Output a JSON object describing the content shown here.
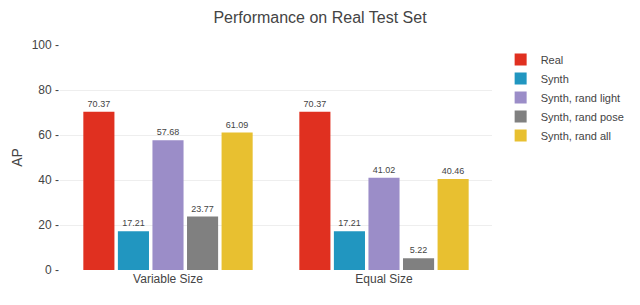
{
  "chart_data": {
    "type": "bar",
    "title": "Performance on Real Test Set",
    "ylabel": "AP",
    "categories": [
      "Variable Size",
      "Equal Size"
    ],
    "series": [
      {
        "name": "Real",
        "color": "#E03020",
        "values": [
          70.37,
          70.37
        ]
      },
      {
        "name": "Synth",
        "color": "#2196C0",
        "values": [
          17.21,
          17.21
        ]
      },
      {
        "name": "Synth, rand light",
        "color": "#9B8DC8",
        "values": [
          57.68,
          41.02
        ]
      },
      {
        "name": "Synth, rand pose",
        "color": "#808080",
        "values": [
          23.77,
          5.22
        ]
      },
      {
        "name": "Synth, rand all",
        "color": "#E8C030",
        "values": [
          61.09,
          40.46
        ]
      }
    ],
    "ylim": [
      0,
      100
    ],
    "yticks": [
      {
        "value": 0,
        "label": "0 -"
      },
      {
        "value": 20,
        "label": "20 -"
      },
      {
        "value": 40,
        "label": "40 -"
      },
      {
        "value": 60,
        "label": "60 -"
      },
      {
        "value": 80,
        "label": "80 -"
      },
      {
        "value": 100,
        "label": "100 -"
      }
    ],
    "grid": true,
    "legend": "upper right",
    "data_labels": true
  }
}
